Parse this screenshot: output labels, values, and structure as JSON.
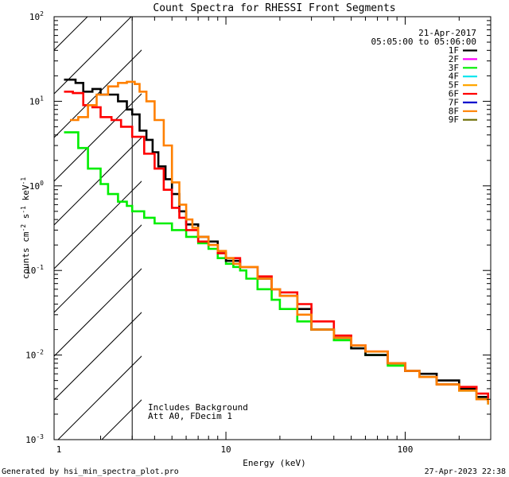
{
  "colors": {
    "1F": "#000000",
    "2F": "#ff00ff",
    "3F": "#00ee00",
    "4F": "#00e5ee",
    "5F": "#ffa500",
    "6F": "#ff0000",
    "7F": "#0000cc",
    "8F": "#ff8000",
    "9F": "#6b6b00"
  },
  "chart_data": {
    "type": "line",
    "title": "Count Spectra for RHESSI Front Segments",
    "xlabel": "Energy (keV)",
    "ylabel": {
      "prefix": "counts cm",
      "exp1": "-2",
      "mid1": " s",
      "exp2": "-1",
      "mid2": " keV",
      "exp3": "-1"
    },
    "xscale": "log",
    "yscale": "log",
    "xlim": [
      1.1,
      300
    ],
    "ylim": [
      0.001,
      100
    ],
    "x_ticks": [
      {
        "value": 1,
        "label": "1"
      },
      {
        "value": 10,
        "label": "10"
      },
      {
        "value": 100,
        "label": "100"
      }
    ],
    "y_ticks": [
      {
        "value": 0.001,
        "base": "10",
        "exp": "-3"
      },
      {
        "value": 0.01,
        "base": "10",
        "exp": "-2"
      },
      {
        "value": 0.1,
        "base": "10",
        "exp": "-1"
      },
      {
        "value": 1,
        "base": "10",
        "exp": "0"
      },
      {
        "value": 10,
        "base": "10",
        "exp": "1"
      },
      {
        "value": 100,
        "base": "10",
        "exp": "2"
      }
    ],
    "attenuator_cutoff_kev": 3.0,
    "legend": {
      "date": "21-Apr-2017",
      "time_range": "05:05:00 to 05:06:00",
      "entries": [
        "1F",
        "2F",
        "3F",
        "4F",
        "5F",
        "6F",
        "7F",
        "8F",
        "9F"
      ]
    },
    "annotations": [
      "Includes Background",
      "Att A0, FDecim 1"
    ],
    "series": [
      {
        "name": "1F",
        "x": [
          1.25,
          1.45,
          1.6,
          1.8,
          2.0,
          2.2,
          2.5,
          2.8,
          3.0,
          3.3,
          3.6,
          3.9,
          4.2,
          4.6,
          5.0,
          5.5,
          6.0,
          7.0,
          8.0,
          9.0,
          10,
          12,
          15,
          18,
          20,
          25,
          30,
          40,
          50,
          60,
          80,
          100,
          120,
          150,
          200,
          250,
          290
        ],
        "values": [
          18,
          16.5,
          13,
          14,
          12,
          12,
          10,
          8,
          7,
          4.5,
          3.5,
          2.5,
          1.7,
          1.2,
          0.8,
          0.5,
          0.35,
          0.25,
          0.22,
          0.16,
          0.13,
          0.11,
          0.08,
          0.06,
          0.05,
          0.035,
          0.02,
          0.016,
          0.012,
          0.01,
          0.008,
          0.0065,
          0.006,
          0.005,
          0.004,
          0.0032,
          0.0028
        ]
      },
      {
        "name": "3F",
        "x": [
          1.25,
          1.35,
          1.5,
          1.7,
          2.0,
          2.2,
          2.5,
          2.8,
          3.0,
          3.5,
          4.0,
          5.0,
          6.0,
          7.0,
          8.0,
          9.0,
          10,
          11,
          12,
          13,
          15,
          18,
          20,
          25,
          30,
          40,
          50,
          60,
          80,
          100,
          120,
          150,
          200,
          250,
          290
        ],
        "values": [
          4.3,
          4.3,
          2.8,
          1.6,
          1.05,
          0.8,
          0.65,
          0.58,
          0.5,
          0.42,
          0.36,
          0.3,
          0.25,
          0.21,
          0.18,
          0.14,
          0.12,
          0.11,
          0.1,
          0.08,
          0.06,
          0.045,
          0.035,
          0.025,
          0.02,
          0.015,
          0.012,
          0.01,
          0.0075,
          0.0065,
          0.0055,
          0.0045,
          0.0038,
          0.003,
          0.0026
        ]
      },
      {
        "name": "6F",
        "x": [
          1.25,
          1.4,
          1.6,
          1.8,
          2.0,
          2.3,
          2.6,
          3.0,
          3.5,
          4.0,
          4.5,
          5.0,
          5.5,
          6.0,
          7.0,
          8.0,
          9.0,
          10,
          12,
          15,
          18,
          20,
          25,
          30,
          40,
          50,
          60,
          80,
          100,
          120,
          150,
          200,
          250,
          290
        ],
        "values": [
          13,
          12.5,
          9,
          8.5,
          6.5,
          6.0,
          5.0,
          3.8,
          2.4,
          1.6,
          0.9,
          0.55,
          0.42,
          0.3,
          0.22,
          0.2,
          0.16,
          0.14,
          0.11,
          0.085,
          0.06,
          0.055,
          0.04,
          0.025,
          0.017,
          0.013,
          0.011,
          0.008,
          0.0065,
          0.0055,
          0.0045,
          0.0042,
          0.0035,
          0.0028
        ]
      },
      {
        "name": "8F",
        "x": [
          1.35,
          1.5,
          1.7,
          1.9,
          2.2,
          2.5,
          2.8,
          3.1,
          3.3,
          3.6,
          4.0,
          4.5,
          5.0,
          5.5,
          6.0,
          6.5,
          7.0,
          8.0,
          9.0,
          10,
          11,
          12,
          15,
          18,
          20,
          25,
          30,
          40,
          50,
          60,
          80,
          100,
          120,
          150,
          200,
          250,
          290
        ],
        "values": [
          6,
          6.5,
          9,
          12,
          15,
          16.5,
          17,
          16,
          13,
          10,
          6,
          3,
          1.1,
          0.6,
          0.4,
          0.32,
          0.25,
          0.2,
          0.17,
          0.14,
          0.12,
          0.11,
          0.08,
          0.06,
          0.05,
          0.03,
          0.02,
          0.016,
          0.013,
          0.011,
          0.008,
          0.0065,
          0.0055,
          0.0045,
          0.0038,
          0.003,
          0.0026
        ]
      }
    ]
  },
  "footer": {
    "generated": "Generated by hsi_min_spectra_plot.pro",
    "timestamp": "27-Apr-2023 22:38"
  }
}
